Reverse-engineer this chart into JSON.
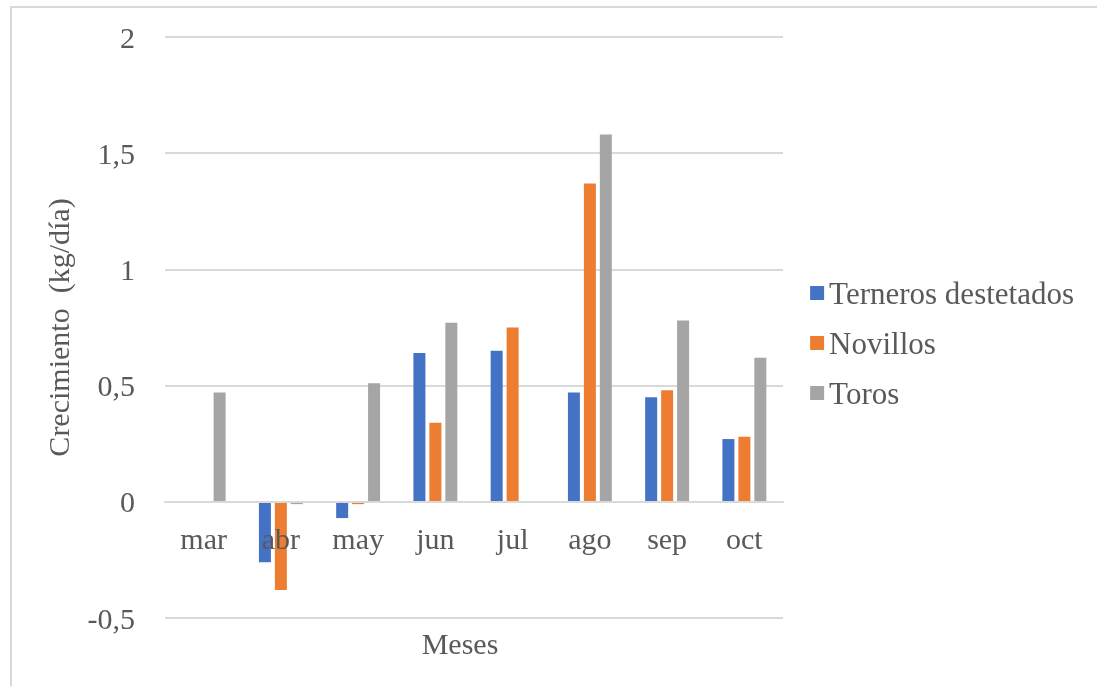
{
  "chart_data": {
    "type": "bar",
    "xlabel": "Meses",
    "ylabel": "Crecimiento  (kg/día)",
    "categories": [
      "mar",
      "abr",
      "may",
      "jun",
      "jul",
      "ago",
      "sep",
      "oct"
    ],
    "series": [
      {
        "name": "Terneros destetados",
        "color": "#4472c4",
        "values": [
          null,
          -0.26,
          -0.07,
          0.64,
          0.65,
          0.47,
          0.45,
          0.27
        ]
      },
      {
        "name": "Novillos",
        "color": "#ed7d31",
        "values": [
          null,
          -0.38,
          -0.01,
          0.34,
          0.75,
          1.37,
          0.48,
          0.28
        ]
      },
      {
        "name": "Toros",
        "color": "#a5a5a5",
        "values": [
          0.47,
          -0.01,
          0.51,
          0.77,
          null,
          1.58,
          0.78,
          0.62
        ]
      }
    ],
    "ylim": [
      -0.5,
      2
    ],
    "yticks": [
      {
        "value": -0.5,
        "label": "-0,5"
      },
      0,
      {
        "value": 0.5,
        "label": "0,5"
      },
      1,
      {
        "value": 1.5,
        "label": "1,5"
      },
      2
    ],
    "grid": "y",
    "legend": "right"
  }
}
